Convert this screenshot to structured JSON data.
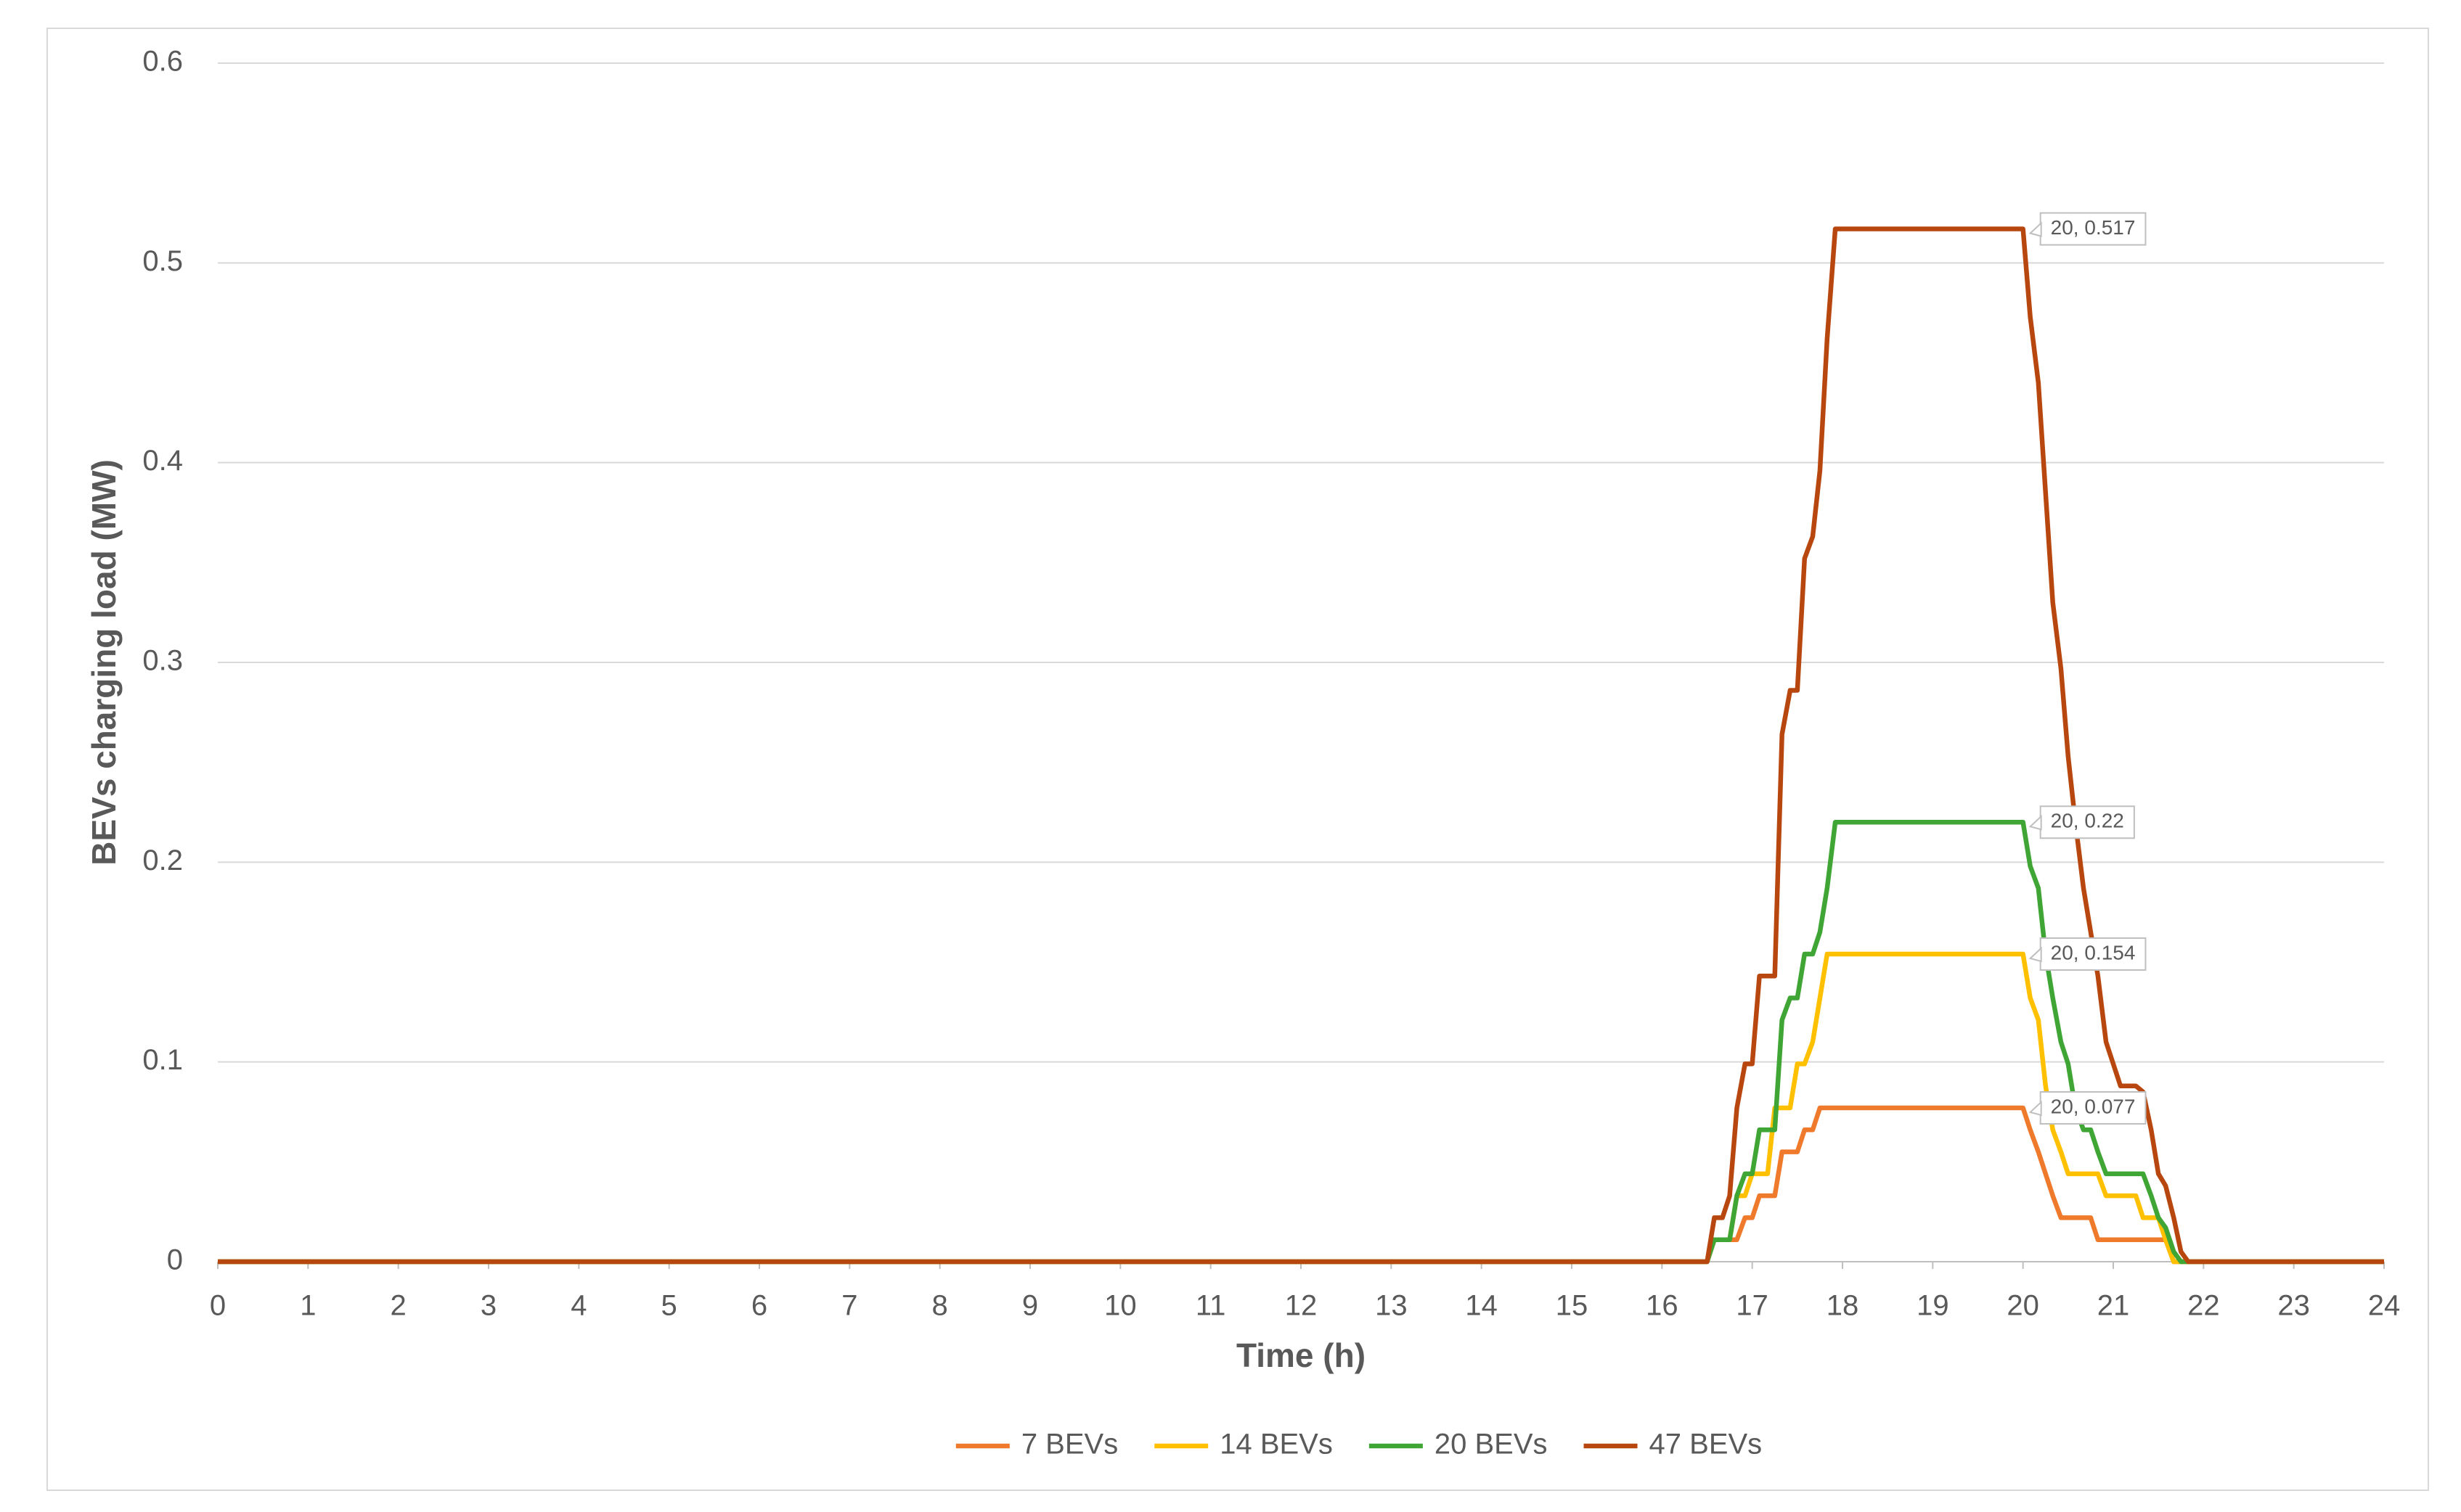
{
  "chart_data": {
    "type": "line",
    "xlabel": "Time (h)",
    "ylabel": "BEVs charging load (MW)",
    "xlim": [
      0,
      24
    ],
    "xticks": [
      0,
      1,
      2,
      3,
      4,
      5,
      6,
      7,
      8,
      9,
      10,
      11,
      12,
      13,
      14,
      15,
      16,
      17,
      18,
      19,
      20,
      21,
      22,
      23,
      24
    ],
    "ylim": [
      0,
      0.6
    ],
    "yticks": [
      0,
      0.1,
      0.2,
      0.3,
      0.4,
      0.5,
      0.6
    ],
    "grid": true,
    "legend": "bottom",
    "series": [
      {
        "name": "7 BEVs",
        "color": "#f07a2c",
        "x": [
          0,
          16.5,
          16.58,
          16.83,
          16.92,
          17,
          17.08,
          17.25,
          17.33,
          17.5,
          17.58,
          17.67,
          17.75,
          20,
          20.08,
          20.17,
          20.25,
          20.33,
          20.42,
          20.75,
          20.83,
          21.58,
          21.67,
          24
        ],
        "values": [
          0,
          0,
          0.011,
          0.011,
          0.022,
          0.022,
          0.033,
          0.033,
          0.055,
          0.055,
          0.066,
          0.066,
          0.077,
          0.077,
          0.066,
          0.055,
          0.044,
          0.033,
          0.022,
          0.022,
          0.011,
          0.011,
          0,
          0
        ],
        "value_labels": [
          null,
          null,
          null,
          null,
          null,
          null,
          null,
          null,
          null,
          null,
          null,
          null,
          null,
          "20, 0.077",
          null,
          null,
          null,
          null,
          null,
          null,
          null,
          null,
          null,
          null
        ]
      },
      {
        "name": "14 BEVs",
        "color": "#ffc000",
        "x": [
          0,
          16.5,
          16.58,
          16.75,
          16.83,
          16.92,
          17,
          17.17,
          17.25,
          17.42,
          17.5,
          17.58,
          17.67,
          17.75,
          17.83,
          20,
          20.08,
          20.17,
          20.25,
          20.33,
          20.42,
          20.5,
          20.83,
          20.92,
          21.25,
          21.33,
          21.5,
          21.58,
          21.67,
          24
        ],
        "values": [
          0,
          0,
          0.011,
          0.011,
          0.033,
          0.033,
          0.044,
          0.044,
          0.077,
          0.077,
          0.099,
          0.099,
          0.11,
          0.132,
          0.154,
          0.154,
          0.132,
          0.121,
          0.088,
          0.066,
          0.055,
          0.044,
          0.044,
          0.033,
          0.033,
          0.022,
          0.022,
          0.011,
          0,
          0
        ],
        "value_labels": [
          null,
          null,
          null,
          null,
          null,
          null,
          null,
          null,
          null,
          null,
          null,
          null,
          null,
          null,
          null,
          "20, 0.154",
          null,
          null,
          null,
          null,
          null,
          null,
          null,
          null,
          null,
          null,
          null,
          null,
          null,
          null
        ]
      },
      {
        "name": "20 BEVs",
        "color": "#3fa535",
        "x": [
          0,
          16.5,
          16.58,
          16.75,
          16.83,
          16.92,
          17,
          17.08,
          17.25,
          17.33,
          17.42,
          17.5,
          17.58,
          17.67,
          17.75,
          17.83,
          17.92,
          20,
          20.08,
          20.17,
          20.25,
          20.33,
          20.42,
          20.5,
          20.58,
          20.67,
          20.75,
          20.83,
          20.92,
          21.25,
          21.33,
          21.42,
          21.5,
          21.58,
          21.67,
          21.75,
          24
        ],
        "values": [
          0,
          0,
          0.011,
          0.011,
          0.033,
          0.044,
          0.044,
          0.066,
          0.066,
          0.121,
          0.132,
          0.132,
          0.154,
          0.154,
          0.165,
          0.187,
          0.22,
          0.22,
          0.198,
          0.187,
          0.154,
          0.132,
          0.11,
          0.099,
          0.077,
          0.066,
          0.066,
          0.055,
          0.044,
          0.044,
          0.044,
          0.033,
          0.022,
          0.017,
          0.005,
          0,
          0
        ],
        "value_labels": [
          null,
          null,
          null,
          null,
          null,
          null,
          null,
          null,
          null,
          null,
          null,
          null,
          null,
          null,
          null,
          null,
          null,
          "20, 0.22",
          null,
          null,
          null,
          null,
          null,
          null,
          null,
          null,
          null,
          null,
          null,
          null,
          null,
          null,
          null,
          null,
          null,
          null,
          null
        ]
      },
      {
        "name": "47 BEVs",
        "color": "#b8470f",
        "x": [
          0,
          16.5,
          16.58,
          16.67,
          16.75,
          16.83,
          16.92,
          17,
          17.08,
          17.25,
          17.33,
          17.42,
          17.5,
          17.58,
          17.67,
          17.75,
          17.83,
          17.92,
          20,
          20.08,
          20.17,
          20.25,
          20.33,
          20.42,
          20.5,
          20.58,
          20.67,
          20.75,
          20.83,
          20.92,
          21,
          21.08,
          21.25,
          21.33,
          21.42,
          21.5,
          21.58,
          21.67,
          21.75,
          21.83,
          24
        ],
        "values": [
          0,
          0,
          0.022,
          0.022,
          0.033,
          0.077,
          0.099,
          0.099,
          0.143,
          0.143,
          0.264,
          0.286,
          0.286,
          0.352,
          0.363,
          0.396,
          0.462,
          0.517,
          0.517,
          0.473,
          0.44,
          0.385,
          0.33,
          0.297,
          0.253,
          0.22,
          0.187,
          0.165,
          0.143,
          0.11,
          0.099,
          0.088,
          0.088,
          0.085,
          0.066,
          0.044,
          0.038,
          0.022,
          0.005,
          0,
          0
        ],
        "value_labels": [
          null,
          null,
          null,
          null,
          null,
          null,
          null,
          null,
          null,
          null,
          null,
          null,
          null,
          null,
          null,
          null,
          null,
          null,
          "20, 0.517",
          null,
          null,
          null,
          null,
          null,
          null,
          null,
          null,
          null,
          null,
          null,
          null,
          null,
          null,
          null,
          null,
          null,
          null,
          null,
          null,
          null,
          null
        ]
      }
    ]
  }
}
